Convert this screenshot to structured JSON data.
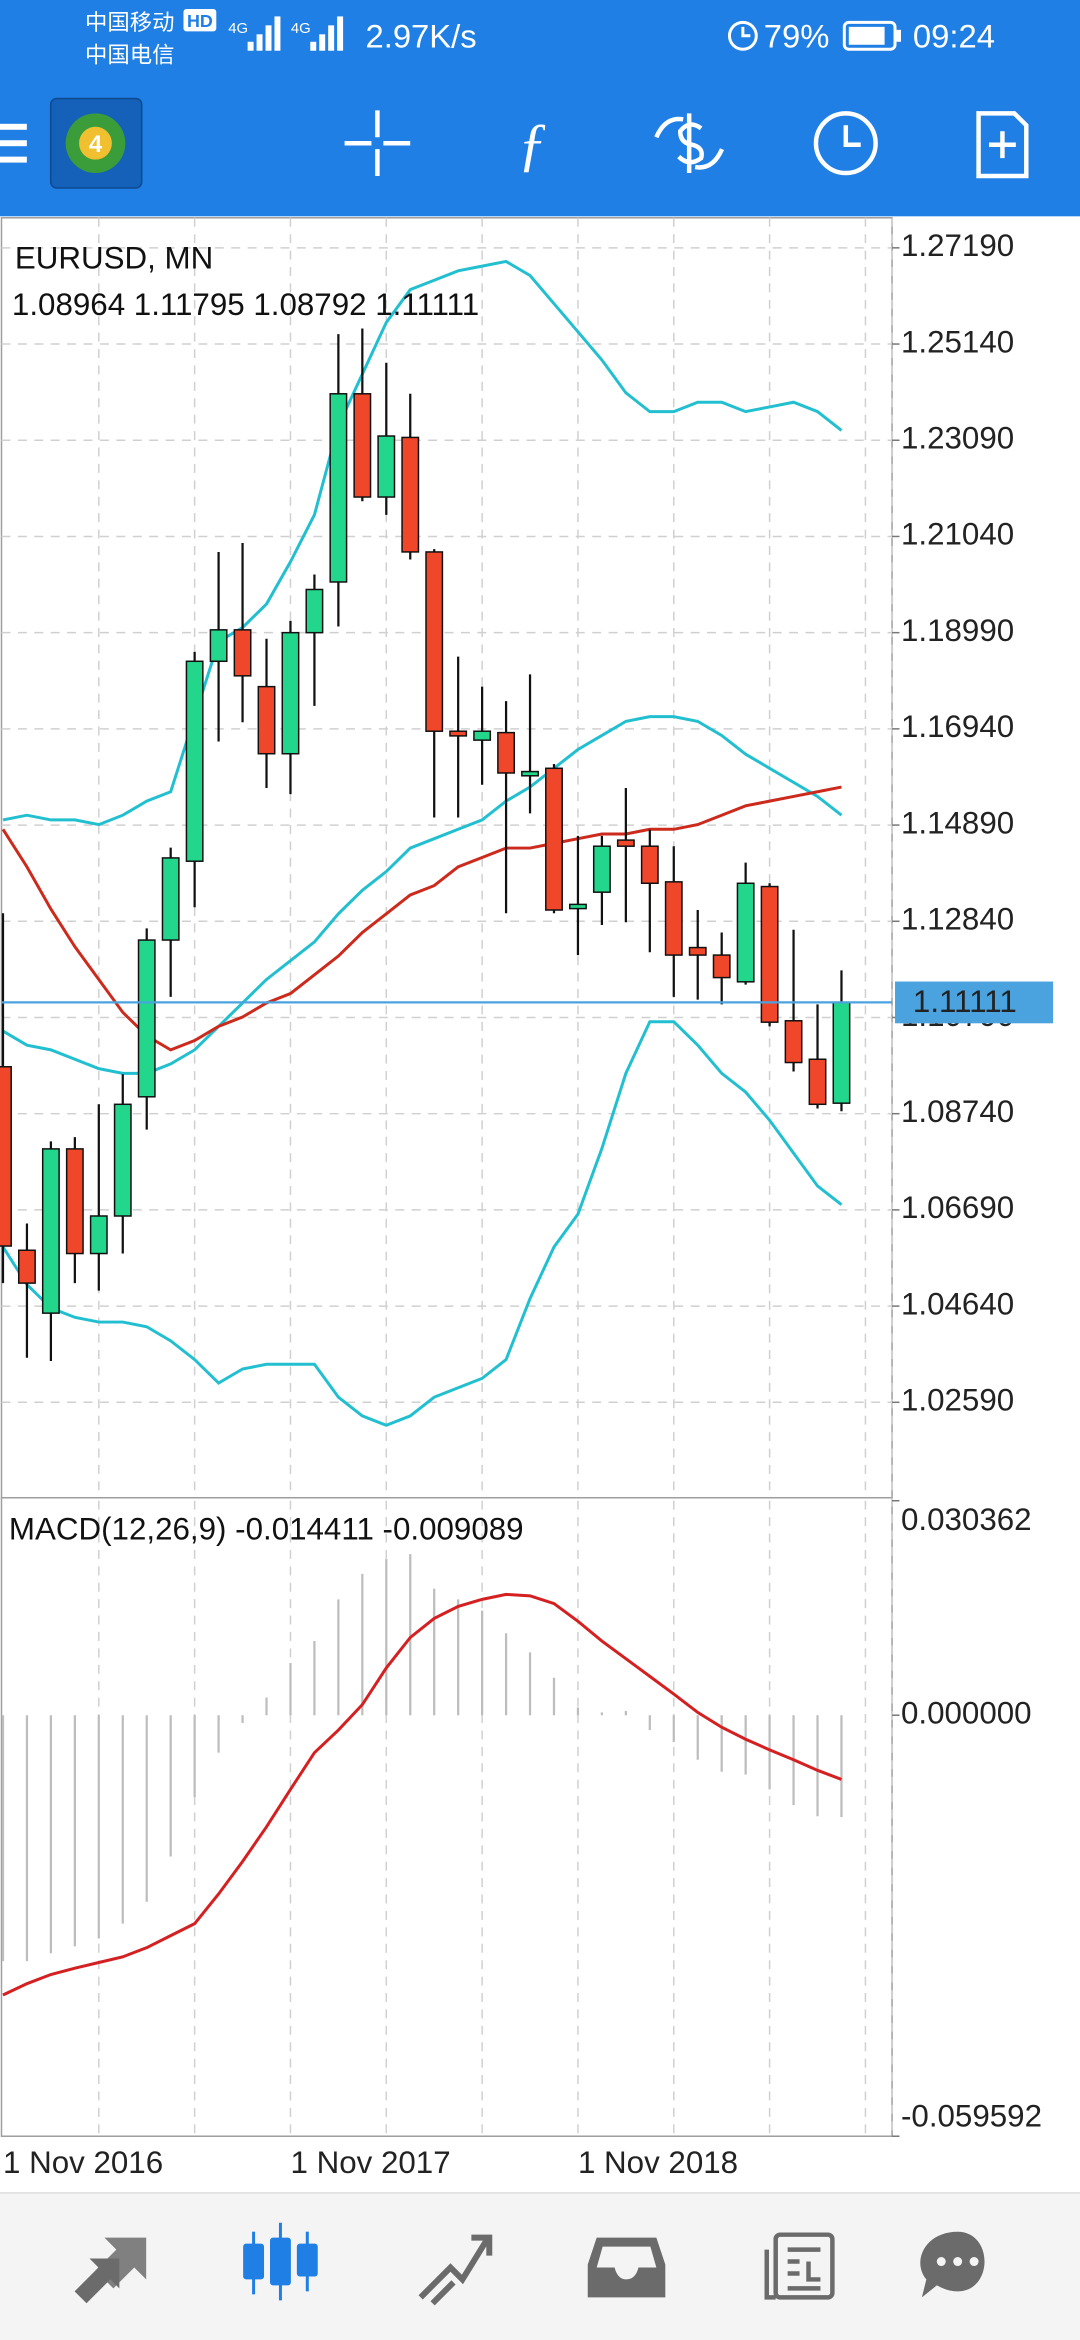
{
  "status_bar": {
    "carrier_1": "中国移动",
    "hd": "HD",
    "carrier_2": "中国电信",
    "network_1": "4G",
    "network_2": "4G",
    "speed": "2.97K/s",
    "battery": "79%",
    "time": "09:24"
  },
  "chart_data": [
    {
      "type": "candlestick",
      "title": "EURUSD, MN",
      "subtitle": "1.08964 1.11795 1.08792 1.11111",
      "categories": [
        "1 Nov 2016",
        null,
        null,
        null,
        null,
        null,
        null,
        null,
        null,
        null,
        null,
        null,
        "1 Nov 2017",
        null,
        null,
        null,
        null,
        null,
        null,
        null,
        null,
        null,
        null,
        null,
        "1 Nov 2018",
        null,
        null,
        null,
        null,
        null,
        null,
        null,
        null,
        null,
        null,
        null
      ],
      "open": [
        1.0974,
        1.0583,
        1.0449,
        1.0799,
        1.0576,
        1.0656,
        1.091,
        1.1244,
        1.1412,
        1.1838,
        1.1905,
        1.1784,
        1.1641,
        1.1899,
        1.2007,
        1.2408,
        1.2188,
        1.2315,
        1.2071,
        1.1689,
        1.167,
        1.1686,
        1.1594,
        1.161,
        1.1311,
        1.1346,
        1.1457,
        1.1444,
        1.1368,
        1.1228,
        1.1212,
        1.1155,
        1.1358,
        1.1072,
        1.099,
        1.08964
      ],
      "high": [
        1.1301,
        1.064,
        1.0815,
        1.0824,
        1.0894,
        1.0958,
        1.1269,
        1.1441,
        1.1858,
        1.2071,
        1.209,
        1.1886,
        1.1924,
        1.2023,
        1.2535,
        1.2547,
        1.2474,
        1.2408,
        1.2077,
        1.1848,
        1.1784,
        1.1753,
        1.181,
        1.1619,
        1.1466,
        1.1466,
        1.1568,
        1.1479,
        1.1444,
        1.1308,
        1.126,
        1.1409,
        1.1365,
        1.1266,
        1.1107,
        1.11795
      ],
      "low": [
        1.0513,
        1.0354,
        1.0347,
        1.0513,
        1.0497,
        1.0576,
        1.084,
        1.1123,
        1.1314,
        1.1667,
        1.1708,
        1.1568,
        1.1555,
        1.1743,
        1.1912,
        1.2179,
        1.215,
        1.2055,
        1.1505,
        1.1505,
        1.1575,
        1.1301,
        1.1514,
        1.1301,
        1.1212,
        1.1276,
        1.1282,
        1.1218,
        1.1123,
        1.1117,
        1.1107,
        1.1149,
        1.106,
        1.0964,
        1.0885,
        1.08792
      ],
      "close": [
        1.0592,
        1.0513,
        1.0799,
        1.0576,
        1.0656,
        1.0894,
        1.1244,
        1.1419,
        1.1838,
        1.1905,
        1.1807,
        1.1641,
        1.1899,
        1.1991,
        1.2408,
        1.2188,
        1.2318,
        1.2071,
        1.1689,
        1.1679,
        1.1689,
        1.16,
        1.1603,
        1.1308,
        1.132,
        1.1444,
        1.1444,
        1.1365,
        1.1212,
        1.1212,
        1.1164,
        1.1365,
        1.1069,
        1.0983,
        1.0894,
        1.11111
      ],
      "up_color": "#22d68c",
      "down_color": "#f0462a",
      "wick_color": "#111111",
      "series": [
        {
          "color": "#22bfd0",
          "values": [
            1.15,
            1.151,
            1.15,
            1.15,
            1.149,
            1.151,
            1.154,
            1.156,
            1.172,
            1.188,
            1.191,
            1.196,
            1.205,
            1.215,
            1.234,
            1.245,
            1.256,
            1.263,
            1.265,
            1.267,
            1.268,
            1.269,
            1.266,
            1.26,
            1.254,
            1.248,
            1.241,
            1.237,
            1.237,
            1.239,
            1.239,
            1.237,
            1.238,
            1.239,
            1.237,
            1.233
          ]
        },
        {
          "color": "#22bfd0",
          "values": [
            1.105,
            1.102,
            1.101,
            1.099,
            1.097,
            1.096,
            1.096,
            1.098,
            1.101,
            1.106,
            1.111,
            1.116,
            1.12,
            1.124,
            1.13,
            1.135,
            1.139,
            1.144,
            1.146,
            1.148,
            1.15,
            1.154,
            1.157,
            1.161,
            1.165,
            1.168,
            1.171,
            1.172,
            1.172,
            1.171,
            1.168,
            1.164,
            1.161,
            1.158,
            1.155,
            1.151
          ]
        },
        {
          "color": "#22bfd0",
          "values": [
            1.059,
            1.051,
            1.046,
            1.044,
            1.043,
            1.043,
            1.042,
            1.039,
            1.035,
            1.03,
            1.033,
            1.034,
            1.034,
            1.034,
            1.027,
            1.023,
            1.021,
            1.023,
            1.027,
            1.029,
            1.031,
            1.035,
            1.048,
            1.059,
            1.066,
            1.08,
            1.096,
            1.107,
            1.107,
            1.102,
            1.096,
            1.092,
            1.086,
            1.079,
            1.072,
            1.068
          ]
        },
        {
          "color": "#cc2a1c",
          "values": [
            1.148,
            1.14,
            1.131,
            1.123,
            1.116,
            1.109,
            1.104,
            1.101,
            1.103,
            1.106,
            1.108,
            1.111,
            1.113,
            1.117,
            1.121,
            1.126,
            1.13,
            1.134,
            1.136,
            1.14,
            1.142,
            1.144,
            1.144,
            1.145,
            1.146,
            1.147,
            1.147,
            1.148,
            1.148,
            1.149,
            1.151,
            1.153,
            1.154,
            1.155,
            1.156,
            1.157
          ]
        }
      ],
      "ylim": [
        1.0062,
        1.2783
      ],
      "yticks": [
        {
          "value": 1.2719,
          "label": "1.27190"
        },
        {
          "value": 1.2514,
          "label": "1.25140"
        },
        {
          "value": 1.2309,
          "label": "1.23090"
        },
        {
          "value": 1.2104,
          "label": "1.21040"
        },
        {
          "value": 1.1899,
          "label": "1.18990"
        },
        {
          "value": 1.1694,
          "label": "1.16940"
        },
        {
          "value": 1.1489,
          "label": "1.14890"
        },
        {
          "value": 1.1284,
          "label": "1.12840"
        },
        {
          "value": 1.1079,
          "label": "1.10790"
        },
        {
          "value": 1.0874,
          "label": "1.08740"
        },
        {
          "value": 1.0669,
          "label": "1.06690"
        },
        {
          "value": 1.0464,
          "label": "1.04640"
        },
        {
          "value": 1.0259,
          "label": "1.02590"
        }
      ],
      "grid": true,
      "current_price": {
        "value": 1.11111,
        "label": "1.11111"
      },
      "current_price_color": "#4aa3df"
    },
    {
      "type": "macd",
      "title": "MACD(12,26,9) -0.014411 -0.009089",
      "series": [
        {
          "style": "histogram",
          "color": "#bdbdbd",
          "values": [
            -0.0348,
            -0.0348,
            -0.0337,
            -0.0327,
            -0.0316,
            -0.0295,
            -0.0264,
            -0.02,
            -0.0116,
            -0.0053,
            -0.0011,
            0.0025,
            0.0074,
            0.0105,
            0.0164,
            0.02,
            0.0221,
            0.0228,
            0.0179,
            0.0164,
            0.0148,
            0.0116,
            0.0089,
            0.0053,
            0.0011,
            0.0004,
            0.0006,
            -0.0021,
            -0.0038,
            -0.0063,
            -0.008,
            -0.0084,
            -0.0105,
            -0.0127,
            -0.0143,
            -0.014411
          ]
        },
        {
          "style": "line",
          "color": "#d42020",
          "values": [
            -0.0396,
            -0.038,
            -0.0367,
            -0.0358,
            -0.035,
            -0.0342,
            -0.0329,
            -0.0312,
            -0.0295,
            -0.0253,
            -0.0207,
            -0.0158,
            -0.0105,
            -0.0053,
            -0.0021,
            0.0015,
            0.0067,
            0.011,
            0.0137,
            0.0154,
            0.0164,
            0.0171,
            0.0169,
            0.0158,
            0.0133,
            0.0105,
            0.008,
            0.0055,
            0.003,
            0.0004,
            -0.0017,
            -0.0034,
            -0.0049,
            -0.0063,
            -0.0078,
            -0.009089
          ]
        }
      ],
      "ylim": [
        -0.059592,
        0.030362
      ],
      "yticks": [
        {
          "value": 0.030362,
          "label": "0.030362"
        },
        {
          "value": 0,
          "label": "0.000000"
        },
        {
          "value": -0.059592,
          "label": "-0.059592"
        }
      ]
    }
  ]
}
